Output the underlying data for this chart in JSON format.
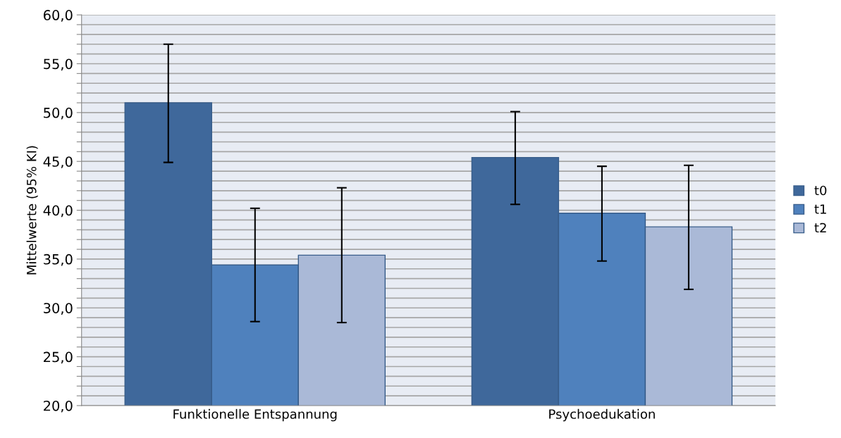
{
  "chart_data": {
    "type": "bar",
    "ylabel": "Mittelwerte (95% KI)",
    "categories": [
      "Funktionelle Entspannung",
      "Psychoedukation"
    ],
    "series": [
      {
        "name": "t0",
        "color": "#3f689b",
        "values": [
          51.0,
          45.4
        ],
        "errors": [
          [
            44.9,
            57.0
          ],
          [
            40.6,
            50.1
          ]
        ]
      },
      {
        "name": "t1",
        "color": "#4f81bd",
        "values": [
          34.4,
          39.7
        ],
        "errors": [
          [
            28.6,
            40.2
          ],
          [
            34.8,
            44.5
          ]
        ]
      },
      {
        "name": "t2",
        "color": "#aab9d7",
        "values": [
          35.4,
          38.3
        ],
        "errors": [
          [
            28.5,
            42.3
          ],
          [
            31.9,
            44.6
          ]
        ]
      }
    ],
    "ylim": [
      20,
      60
    ],
    "yticks": [
      {
        "value": 20,
        "label": "20,0"
      },
      {
        "value": 21,
        "label": null
      },
      {
        "value": 22,
        "label": null
      },
      {
        "value": 23,
        "label": null
      },
      {
        "value": 24,
        "label": null
      },
      {
        "value": 25,
        "label": "25,0"
      },
      {
        "value": 26,
        "label": null
      },
      {
        "value": 27,
        "label": null
      },
      {
        "value": 28,
        "label": null
      },
      {
        "value": 29,
        "label": null
      },
      {
        "value": 30,
        "label": "30,0"
      },
      {
        "value": 31,
        "label": null
      },
      {
        "value": 32,
        "label": null
      },
      {
        "value": 33,
        "label": null
      },
      {
        "value": 34,
        "label": null
      },
      {
        "value": 35,
        "label": "35,0"
      },
      {
        "value": 36,
        "label": null
      },
      {
        "value": 37,
        "label": null
      },
      {
        "value": 38,
        "label": null
      },
      {
        "value": 39,
        "label": null
      },
      {
        "value": 40,
        "label": "40,0"
      },
      {
        "value": 41,
        "label": null
      },
      {
        "value": 42,
        "label": null
      },
      {
        "value": 43,
        "label": null
      },
      {
        "value": 44,
        "label": null
      },
      {
        "value": 45,
        "label": "45,0"
      },
      {
        "value": 46,
        "label": null
      },
      {
        "value": 47,
        "label": null
      },
      {
        "value": 48,
        "label": null
      },
      {
        "value": 49,
        "label": null
      },
      {
        "value": 50,
        "label": "50,0"
      },
      {
        "value": 51,
        "label": null
      },
      {
        "value": 52,
        "label": null
      },
      {
        "value": 53,
        "label": null
      },
      {
        "value": 54,
        "label": null
      },
      {
        "value": 55,
        "label": "55,0"
      },
      {
        "value": 56,
        "label": null
      },
      {
        "value": 57,
        "label": null
      },
      {
        "value": 58,
        "label": null
      },
      {
        "value": 59,
        "label": null
      },
      {
        "value": 60,
        "label": "60,0"
      }
    ],
    "grid": "y",
    "legend": "right"
  }
}
